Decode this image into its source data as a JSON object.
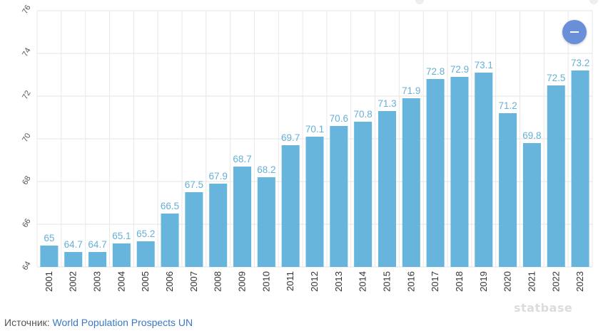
{
  "chart_data": {
    "type": "bar",
    "categories": [
      "2001",
      "2002",
      "2003",
      "2004",
      "2005",
      "2006",
      "2007",
      "2008",
      "2009",
      "2010",
      "2011",
      "2012",
      "2013",
      "2014",
      "2015",
      "2016",
      "2017",
      "2018",
      "2019",
      "2020",
      "2021",
      "2022",
      "2023"
    ],
    "values": [
      65,
      64.7,
      64.7,
      65.1,
      65.2,
      66.5,
      67.5,
      67.9,
      68.7,
      68.2,
      69.7,
      70.1,
      70.6,
      70.8,
      71.3,
      71.9,
      72.8,
      72.9,
      73.1,
      71.2,
      69.8,
      72.5,
      73.2
    ],
    "value_labels": [
      "65",
      "64.7",
      "64.7",
      "65.1",
      "65.2",
      "66.5",
      "67.5",
      "67.9",
      "68.7",
      "68.2",
      "69.7",
      "70.1",
      "70.6",
      "70.8",
      "71.3",
      "71.9",
      "72.8",
      "72.9",
      "73.1",
      "71.2",
      "69.8",
      "72.5",
      "73.2"
    ],
    "ylim": [
      64,
      76
    ],
    "yticks": [
      "64",
      "66",
      "68",
      "70",
      "72",
      "74",
      "76"
    ],
    "grid": true,
    "bar_color": "#67b5dc",
    "label_color": "#66b0d6"
  },
  "source": {
    "prefix": "Источник:",
    "link": "World Population Prospects UN"
  },
  "watermark": "statbase",
  "collapse_button": {
    "icon": "minus-icon",
    "color": "#6a8fd9"
  }
}
